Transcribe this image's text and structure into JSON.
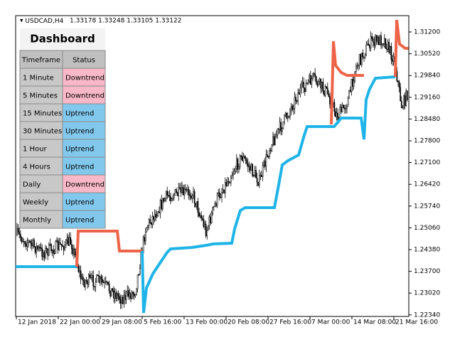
{
  "header": {
    "symbol": "USDCAD,H4",
    "quote": "1.33178 1.33248 1.33105 1.33122"
  },
  "dashboard": {
    "title": "Dashboard",
    "columns": [
      "Timeframe",
      "Status"
    ],
    "rows": [
      [
        "1 Minute",
        "Downtrend"
      ],
      [
        "5 Minutes",
        "Downtrend"
      ],
      [
        "15 Minutes",
        "Uptrend"
      ],
      [
        "30 Minutes",
        "Uptrend"
      ],
      [
        "1 Hour",
        "Uptrend"
      ],
      [
        "4 Hours",
        "Uptrend"
      ],
      [
        "Daily",
        "Downtrend"
      ],
      [
        "Weekly",
        "Uptrend"
      ],
      [
        "Monthly",
        "Uptrend"
      ]
    ]
  },
  "price_axis": [
    "1.31200",
    "1.30520",
    "1.29840",
    "1.29160",
    "1.28480",
    "1.27800",
    "1.27100",
    "1.26420",
    "1.25740",
    "1.25060",
    "1.24380",
    "1.23700",
    "1.23020",
    "1.22340"
  ],
  "time_axis": [
    "12 Jan 2018",
    "22 Jan 00:00",
    "29 Jan 08:00",
    "5 Feb 16:00",
    "13 Feb 00:00",
    "20 Feb 08:00",
    "27 Feb 16:00",
    "7 Mar 00:00",
    "14 Mar 08:00",
    "21 Mar 16:00"
  ]
}
